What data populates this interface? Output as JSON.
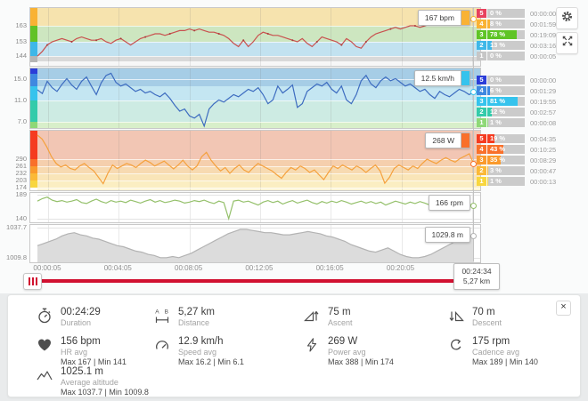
{
  "colors": {
    "accent_red": "#d11030",
    "page_background": "#e9ebec",
    "panel_background": "#fafbfb",
    "grid": "#c9c9c9"
  },
  "cursor": {
    "time": "00:24:34",
    "distance": "5,27 km"
  },
  "toolbar": {
    "settings_icon": "gear-icon",
    "fullscreen_icon": "fullscreen-icon"
  },
  "zones": {
    "hr": {
      "rows": [
        {
          "zone": "5",
          "pct": "0 %",
          "pct_value": 0,
          "time": "00:00:00",
          "color": "#e8415e"
        },
        {
          "zone": "4",
          "pct": "8 %",
          "pct_value": 8,
          "time": "00:01:59",
          "color": "#f9b234"
        },
        {
          "zone": "3",
          "pct": "78 %",
          "pct_value": 78,
          "time": "00:19:09",
          "color": "#5fc426"
        },
        {
          "zone": "2",
          "pct": "13 %",
          "pct_value": 13,
          "time": "00:03:16",
          "color": "#3eb7e8"
        },
        {
          "zone": "1",
          "pct": "0 %",
          "pct_value": 0,
          "time": "00:00:05",
          "color": "#c6c6c6"
        }
      ]
    },
    "speed": {
      "rows": [
        {
          "zone": "5",
          "pct": "0 %",
          "pct_value": 0,
          "time": "00:00:00",
          "color": "#2b3dd8"
        },
        {
          "zone": "4",
          "pct": "6 %",
          "pct_value": 6,
          "time": "00:01:29",
          "color": "#3f88e0"
        },
        {
          "zone": "3",
          "pct": "81 %",
          "pct_value": 81,
          "time": "00:19:55",
          "color": "#35c3ed"
        },
        {
          "zone": "2",
          "pct": "12 %",
          "pct_value": 12,
          "time": "00:02:57",
          "color": "#33cbaa"
        },
        {
          "zone": "1",
          "pct": "1 %",
          "pct_value": 1,
          "time": "00:00:08",
          "color": "#8ed877"
        }
      ]
    },
    "power": {
      "rows": [
        {
          "zone": "5",
          "pct": "19 %",
          "pct_value": 19,
          "time": "00:04:35",
          "color": "#f53b20"
        },
        {
          "zone": "4",
          "pct": "43 %",
          "pct_value": 43,
          "time": "00:10:25",
          "color": "#f9702a"
        },
        {
          "zone": "3",
          "pct": "35 %",
          "pct_value": 35,
          "time": "00:08:29",
          "color": "#fa9a2c"
        },
        {
          "zone": "2",
          "pct": "3 %",
          "pct_value": 3,
          "time": "00:00:47",
          "color": "#fbb937"
        },
        {
          "zone": "1",
          "pct": "1 %",
          "pct_value": 1,
          "time": "00:00:13",
          "color": "#f8d63e"
        }
      ]
    }
  },
  "chart_data": {
    "x_labels": [
      "00:00:05",
      "00:04:05",
      "00:08:05",
      "00:12:05",
      "00:16:05",
      "00:20:05",
      "00:24:05"
    ],
    "charts": [
      {
        "name": "heart-rate",
        "type": "line",
        "unit": "bpm",
        "color": "#c9504e",
        "marker_color": "#a83e3c",
        "markers": true,
        "y_domain": [
          138,
          174.1
        ],
        "y_ticks": [
          {
            "label": "163",
            "value": 163
          },
          {
            "label": "153",
            "value": 153
          },
          {
            "label": "144",
            "value": 144
          }
        ],
        "bands": [
          {
            "from": 163,
            "to": 174.1,
            "color": "#f6e3ae"
          },
          {
            "from": 153,
            "to": 163,
            "color": "#cde6c0"
          },
          {
            "from": 144,
            "to": 153,
            "color": "#c2e2f0"
          },
          {
            "from": 141,
            "to": 144,
            "color": "#d9d9d9"
          },
          {
            "from": 138,
            "to": 141,
            "color": "#f7f7f7"
          }
        ],
        "strip": [
          {
            "from": 163,
            "to": 174.1,
            "color": "#f9b234"
          },
          {
            "from": 153,
            "to": 163,
            "color": "#61c226"
          },
          {
            "from": 144,
            "to": 153,
            "color": "#3eb7e8"
          },
          {
            "from": 140,
            "to": 144,
            "color": "#b5b5b5"
          }
        ],
        "cursor_label": "167 bpm",
        "cursor_value": 167,
        "cursor_chip_color": "#f9b234",
        "values": [
          144,
          147,
          151,
          153,
          154,
          155,
          154,
          153,
          155,
          156,
          155,
          154,
          154,
          155,
          153,
          152,
          154,
          155,
          153,
          151,
          153,
          155,
          156,
          157,
          158,
          158,
          157,
          158,
          159,
          160,
          160,
          161,
          160,
          161,
          160,
          159,
          159,
          158,
          157,
          155,
          152,
          150,
          154,
          150,
          153,
          157,
          159,
          158,
          157,
          157,
          156,
          155,
          154,
          153,
          155,
          152,
          150,
          153,
          156,
          155,
          154,
          153,
          151,
          155,
          153,
          150,
          149,
          153,
          156,
          158,
          159,
          160,
          161,
          162,
          161,
          162,
          163,
          163,
          162,
          163,
          164,
          165,
          164,
          165,
          166,
          165,
          166,
          165,
          166,
          167
        ]
      },
      {
        "name": "speed",
        "type": "line",
        "unit": "km/h",
        "color": "#3d6cc0",
        "y_domain": [
          5.83,
          17.0
        ],
        "y_ticks": [
          {
            "label": "15.0",
            "value": 15
          },
          {
            "label": "11.0",
            "value": 11
          },
          {
            "label": "7.0",
            "value": 7
          }
        ],
        "bands": [
          {
            "from": 13.6,
            "to": 17.0,
            "color": "#a6cde6"
          },
          {
            "from": 11,
            "to": 13.6,
            "color": "#c4e6f2"
          },
          {
            "from": 7,
            "to": 11,
            "color": "#cdebe3"
          },
          {
            "from": 5.83,
            "to": 7,
            "color": "#d8efca"
          }
        ],
        "strip": [
          {
            "from": 16,
            "to": 17.0,
            "color": "#2b3dd8"
          },
          {
            "from": 13.6,
            "to": 16,
            "color": "#3f88e0"
          },
          {
            "from": 11,
            "to": 13.6,
            "color": "#35c3ed"
          },
          {
            "from": 7,
            "to": 11,
            "color": "#33cbaa"
          },
          {
            "from": 5.83,
            "to": 7,
            "color": "#8ed877"
          }
        ],
        "cursor_label": "12.5 km/h",
        "cursor_value": 12.5,
        "cursor_chip_color": "#35c3ed",
        "values": [
          13.0,
          12.3,
          14.6,
          13.4,
          12.7,
          14.0,
          15.1,
          13.9,
          13.1,
          14.6,
          15.4,
          13.7,
          12.1,
          14.3,
          15.7,
          16.1,
          14.4,
          13.7,
          14.1,
          13.4,
          12.7,
          13.1,
          12.4,
          12.7,
          12.1,
          11.7,
          12.4,
          11.4,
          10.1,
          9.0,
          9.4,
          8.1,
          7.7,
          8.4,
          6.2,
          9.4,
          10.4,
          11.1,
          10.7,
          11.4,
          12.1,
          11.7,
          12.4,
          13.1,
          12.7,
          13.4,
          12.1,
          10.4,
          11.1,
          13.7,
          12.4,
          13.1,
          13.9,
          9.7,
          10.4,
          12.7,
          13.4,
          14.1,
          13.7,
          14.4,
          13.1,
          12.4,
          13.7,
          11.1,
          10.4,
          12.1,
          14.7,
          15.7,
          14.1,
          13.4,
          14.7,
          15.4,
          14.7,
          15.1,
          14.4,
          13.7,
          14.1,
          13.4,
          12.7,
          13.1,
          12.1,
          11.4,
          12.7,
          12.1,
          11.7,
          12.4,
          13.1,
          12.7,
          12.1,
          12.5
        ]
      },
      {
        "name": "power",
        "type": "line",
        "unit": "W",
        "color": "#f5a13d",
        "y_domain": [
          163,
          406
        ],
        "y_ticks": [
          {
            "label": "290",
            "value": 290
          },
          {
            "label": "261",
            "value": 261
          },
          {
            "label": "232",
            "value": 232
          },
          {
            "label": "203",
            "value": 203
          },
          {
            "label": "174",
            "value": 174
          }
        ],
        "bands": [
          {
            "from": 290,
            "to": 406,
            "color": "#f2c6b4"
          },
          {
            "from": 261,
            "to": 290,
            "color": "#f5cfad"
          },
          {
            "from": 232,
            "to": 261,
            "color": "#f7dab1"
          },
          {
            "from": 203,
            "to": 232,
            "color": "#f9e5b8"
          },
          {
            "from": 174,
            "to": 203,
            "color": "#fbeec2"
          },
          {
            "from": 163,
            "to": 174,
            "color": "#fcf5d8"
          }
        ],
        "strip": [
          {
            "from": 290,
            "to": 406,
            "color": "#f53b20"
          },
          {
            "from": 261,
            "to": 290,
            "color": "#f9702a"
          },
          {
            "from": 232,
            "to": 261,
            "color": "#fa9a2c"
          },
          {
            "from": 203,
            "to": 232,
            "color": "#fbb937"
          },
          {
            "from": 174,
            "to": 203,
            "color": "#f8d63e"
          }
        ],
        "cursor_label": "268 W",
        "cursor_value": 268,
        "cursor_chip_color": "#f9702a",
        "values": [
          388,
          372,
          340,
          300,
          272,
          258,
          266,
          252,
          246,
          262,
          272,
          256,
          242,
          216,
          190,
          232,
          266,
          252,
          262,
          272,
          266,
          256,
          272,
          286,
          276,
          262,
          272,
          282,
          266,
          250,
          266,
          286,
          262,
          246,
          262,
          300,
          318,
          286,
          262,
          242,
          256,
          232,
          252,
          266,
          246,
          236,
          256,
          272,
          262,
          252,
          242,
          226,
          212,
          236,
          256,
          246,
          262,
          252,
          236,
          246,
          226,
          206,
          236,
          262,
          252,
          266,
          256,
          246,
          262,
          252,
          236,
          252,
          266,
          242,
          192,
          216,
          252,
          266,
          256,
          246,
          262,
          252,
          272,
          290,
          280,
          272,
          286,
          296,
          286,
          278,
          292,
          302,
          312,
          268
        ]
      },
      {
        "name": "cadence",
        "type": "line",
        "unit": "rpm",
        "color": "#94c06a",
        "grid_color": "#e3e3e3",
        "y_domain": [
          132.8,
          192.6
        ],
        "y_ticks": [
          {
            "label": "189",
            "value": 189
          },
          {
            "label": "140",
            "value": 140
          }
        ],
        "bands": [],
        "strip": [],
        "cursor_label": "166 rpm",
        "cursor_value": 166,
        "values": [
          176,
          181,
          184,
          178,
          175,
          177,
          174,
          176,
          179,
          173,
          171,
          176,
          180,
          175,
          172,
          177,
          174,
          176,
          173,
          178,
          175,
          172,
          176,
          179,
          174,
          177,
          173,
          175,
          178,
          176,
          172,
          174,
          177,
          175,
          178,
          174,
          171,
          176,
          173,
          140,
          176,
          178,
          174,
          176,
          172,
          168,
          174,
          177,
          173,
          176,
          170,
          174,
          177,
          172,
          175,
          178,
          173,
          170,
          175,
          172,
          176,
          173,
          177,
          174,
          170,
          173,
          176,
          172,
          175,
          171,
          174,
          168,
          172,
          176,
          173,
          170,
          174,
          171,
          175,
          172,
          168,
          173,
          176,
          172,
          175,
          173,
          170,
          174,
          170,
          166
        ]
      },
      {
        "name": "altitude",
        "type": "area",
        "unit": "m",
        "color": "#b3b3b3",
        "fill": "#dcdcdc",
        "grid_color": "#e3e3e3",
        "y_domain": [
          1005.7,
          1040.1
        ],
        "y_ticks": [
          {
            "label": "1037.7",
            "value": 1037.7
          },
          {
            "label": "1009.8",
            "value": 1009.8
          }
        ],
        "bands": [],
        "strip": [],
        "cursor_label": "1029.8 m",
        "cursor_value": 1029.8,
        "values": [
          1021,
          1023,
          1025,
          1027,
          1030,
          1032,
          1033,
          1031,
          1030,
          1028,
          1027,
          1025,
          1023,
          1021,
          1020,
          1018,
          1016,
          1015,
          1013,
          1012,
          1010,
          1010,
          1011,
          1010,
          1012,
          1014,
          1017,
          1020,
          1023,
          1026,
          1029,
          1032,
          1034,
          1036,
          1036,
          1035,
          1034,
          1033,
          1033,
          1032,
          1031,
          1031,
          1032,
          1033,
          1034,
          1033,
          1032,
          1030,
          1029,
          1027,
          1025,
          1022,
          1020,
          1018,
          1016,
          1015,
          1017,
          1019,
          1016,
          1013,
          1011,
          1010,
          1010,
          1011,
          1013,
          1016,
          1019,
          1022,
          1025,
          1027,
          1029,
          1030
        ]
      }
    ]
  },
  "summary": {
    "close_label": "×",
    "items": [
      {
        "icon": "stopwatch",
        "value": "00:24:29",
        "label": "Duration",
        "col": 0,
        "row": 0
      },
      {
        "icon": "distance",
        "value": "5,27 km",
        "label": "Distance",
        "col": 1,
        "row": 0
      },
      {
        "icon": "ascent",
        "value": "75 m",
        "label": "Ascent",
        "col": 2,
        "row": 0
      },
      {
        "icon": "descent",
        "value": "70 m",
        "label": "Descent",
        "col": 3,
        "row": 0
      },
      {
        "icon": "heart",
        "value": "156 bpm",
        "label": "HR avg",
        "minmax": "Max 167  |  Min 141",
        "col": 0,
        "row": 1
      },
      {
        "icon": "speedometer",
        "value": "12.9 km/h",
        "label": "Speed avg",
        "minmax": "Max 16.2  |  Min 6.1",
        "col": 1,
        "row": 1
      },
      {
        "icon": "lightning",
        "value": "269 W",
        "label": "Power avg",
        "minmax": "Max 388  |  Min 174",
        "col": 2,
        "row": 1
      },
      {
        "icon": "cadence",
        "value": "175 rpm",
        "label": "Cadence avg",
        "minmax": "Max 189  |  Min 140",
        "col": 3,
        "row": 1
      },
      {
        "icon": "mountains",
        "value": "1025.1 m",
        "label": "Average altitude",
        "minmax": "Max 1037.7  |  Min 1009.8",
        "col": 0,
        "row": 2
      }
    ]
  }
}
